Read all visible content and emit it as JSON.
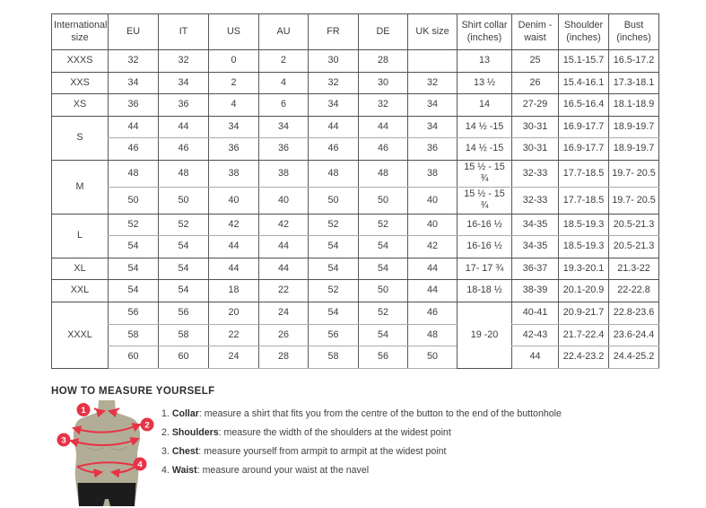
{
  "table": {
    "headers": [
      "International size",
      "EU",
      "IT",
      "US",
      "AU",
      "FR",
      "DE",
      "UK size",
      "Shirt collar (inches)",
      "Denim - waist",
      "Shoulder (inches)",
      "Bust (inches)"
    ],
    "rows": [
      {
        "group_end": true,
        "cells": [
          {
            "v": "XXXS"
          },
          {
            "v": "32"
          },
          {
            "v": "32"
          },
          {
            "v": "0"
          },
          {
            "v": "2"
          },
          {
            "v": "30"
          },
          {
            "v": "28"
          },
          {
            "v": ""
          },
          {
            "v": "13"
          },
          {
            "v": "25"
          },
          {
            "v": "15.1-15.7"
          },
          {
            "v": "16.5-17.2"
          }
        ]
      },
      {
        "group_end": true,
        "cells": [
          {
            "v": "XXS"
          },
          {
            "v": "34"
          },
          {
            "v": "34"
          },
          {
            "v": "2"
          },
          {
            "v": "4"
          },
          {
            "v": "32"
          },
          {
            "v": "30"
          },
          {
            "v": "32"
          },
          {
            "v": "13 ½"
          },
          {
            "v": "26"
          },
          {
            "v": "15.4-16.1"
          },
          {
            "v": "17.3-18.1"
          }
        ]
      },
      {
        "group_end": true,
        "cells": [
          {
            "v": "XS"
          },
          {
            "v": "36"
          },
          {
            "v": "36"
          },
          {
            "v": "4"
          },
          {
            "v": "6"
          },
          {
            "v": "34"
          },
          {
            "v": "32"
          },
          {
            "v": "34"
          },
          {
            "v": "14"
          },
          {
            "v": "27-29"
          },
          {
            "v": "16.5-16.4"
          },
          {
            "v": "18.1-18.9"
          }
        ]
      },
      {
        "group_end": false,
        "cells": [
          {
            "v": "S",
            "rs": 2
          },
          {
            "v": "44"
          },
          {
            "v": "44"
          },
          {
            "v": "34"
          },
          {
            "v": "34"
          },
          {
            "v": "44"
          },
          {
            "v": "44"
          },
          {
            "v": "34"
          },
          {
            "v": "14 ½ -15"
          },
          {
            "v": "30-31"
          },
          {
            "v": "16.9-17.7"
          },
          {
            "v": "18.9-19.7"
          }
        ]
      },
      {
        "group_end": true,
        "cells": [
          {
            "v": "46"
          },
          {
            "v": "46"
          },
          {
            "v": "36"
          },
          {
            "v": "36"
          },
          {
            "v": "46"
          },
          {
            "v": "46"
          },
          {
            "v": "36"
          },
          {
            "v": "14 ½ -15"
          },
          {
            "v": "30-31"
          },
          {
            "v": "16.9-17.7"
          },
          {
            "v": "18.9-19.7"
          }
        ]
      },
      {
        "group_end": false,
        "cells": [
          {
            "v": "M",
            "rs": 2
          },
          {
            "v": "48"
          },
          {
            "v": "48"
          },
          {
            "v": "38"
          },
          {
            "v": "38"
          },
          {
            "v": "48"
          },
          {
            "v": "48"
          },
          {
            "v": "38"
          },
          {
            "v": "15 ½ - 15 ¾"
          },
          {
            "v": "32-33"
          },
          {
            "v": "17.7-18.5"
          },
          {
            "v": "19.7- 20.5"
          }
        ]
      },
      {
        "group_end": true,
        "cells": [
          {
            "v": "50"
          },
          {
            "v": "50"
          },
          {
            "v": "40"
          },
          {
            "v": "40"
          },
          {
            "v": "50"
          },
          {
            "v": "50"
          },
          {
            "v": "40"
          },
          {
            "v": "15 ½ - 15 ¾"
          },
          {
            "v": "32-33"
          },
          {
            "v": "17.7-18.5"
          },
          {
            "v": "19.7- 20.5"
          }
        ]
      },
      {
        "group_end": false,
        "cells": [
          {
            "v": "L",
            "rs": 2
          },
          {
            "v": "52"
          },
          {
            "v": "52"
          },
          {
            "v": "42"
          },
          {
            "v": "42"
          },
          {
            "v": "52"
          },
          {
            "v": "52"
          },
          {
            "v": "40"
          },
          {
            "v": "16-16 ½"
          },
          {
            "v": "34-35"
          },
          {
            "v": "18.5-19.3"
          },
          {
            "v": "20.5-21.3"
          }
        ]
      },
      {
        "group_end": true,
        "cells": [
          {
            "v": "54"
          },
          {
            "v": "54"
          },
          {
            "v": "44"
          },
          {
            "v": "44"
          },
          {
            "v": "54"
          },
          {
            "v": "54"
          },
          {
            "v": "42"
          },
          {
            "v": "16-16 ½"
          },
          {
            "v": "34-35"
          },
          {
            "v": "18.5-19.3"
          },
          {
            "v": "20.5-21.3"
          }
        ]
      },
      {
        "group_end": true,
        "cells": [
          {
            "v": "XL"
          },
          {
            "v": "54"
          },
          {
            "v": "54"
          },
          {
            "v": "44"
          },
          {
            "v": "44"
          },
          {
            "v": "54"
          },
          {
            "v": "54"
          },
          {
            "v": "44"
          },
          {
            "v": "17- 17 ¾"
          },
          {
            "v": "36-37"
          },
          {
            "v": "19.3-20.1"
          },
          {
            "v": "21.3-22"
          }
        ]
      },
      {
        "group_end": true,
        "cells": [
          {
            "v": "XXL"
          },
          {
            "v": "54"
          },
          {
            "v": "54"
          },
          {
            "v": "18"
          },
          {
            "v": "22"
          },
          {
            "v": "52"
          },
          {
            "v": "50"
          },
          {
            "v": "44"
          },
          {
            "v": "18-18 ½"
          },
          {
            "v": "38-39"
          },
          {
            "v": "20.1-20.9"
          },
          {
            "v": "22-22.8"
          }
        ]
      },
      {
        "group_end": false,
        "cells": [
          {
            "v": "XXXL",
            "rs": 3
          },
          {
            "v": "56"
          },
          {
            "v": "56"
          },
          {
            "v": "20"
          },
          {
            "v": "24"
          },
          {
            "v": "54"
          },
          {
            "v": "52"
          },
          {
            "v": "46"
          },
          {
            "v": "19 -20",
            "rs": 3
          },
          {
            "v": "40-41"
          },
          {
            "v": "20.9-21.7"
          },
          {
            "v": "22.8-23.6"
          }
        ]
      },
      {
        "group_end": false,
        "cells": [
          {
            "v": "58"
          },
          {
            "v": "58"
          },
          {
            "v": "22"
          },
          {
            "v": "26"
          },
          {
            "v": "56"
          },
          {
            "v": "54"
          },
          {
            "v": "48"
          },
          {
            "v": "42-43"
          },
          {
            "v": "21.7-22.4"
          },
          {
            "v": "23.6-24.4"
          }
        ]
      },
      {
        "group_end": false,
        "cells": [
          {
            "v": "60"
          },
          {
            "v": "60"
          },
          {
            "v": "24"
          },
          {
            "v": "28"
          },
          {
            "v": "58"
          },
          {
            "v": "56"
          },
          {
            "v": "50"
          },
          {
            "v": "44"
          },
          {
            "v": "22.4-23.2"
          },
          {
            "v": "24.4-25.2"
          }
        ]
      }
    ]
  },
  "measure": {
    "title": "HOW TO MEASURE YOURSELF",
    "steps": [
      {
        "num": "1.",
        "label": "Collar",
        "text": ": measure a shirt that fits you from the centre of the button to the end of the buttonhole"
      },
      {
        "num": "2.",
        "label": "Shoulders",
        "text": ": measure the width of the shoulders at the widest point"
      },
      {
        "num": "3.",
        "label": "Chest",
        "text": ": measure yourself from armpit to armpit at the widest point"
      },
      {
        "num": "4.",
        "label": "Waist",
        "text": ": measure around your waist at the navel"
      }
    ]
  },
  "figure": {
    "badges": [
      "1",
      "2",
      "3",
      "4"
    ]
  },
  "colors": {
    "accent_red": "#e73345",
    "torso_olive": "#b2ad96",
    "shorts_black": "#1c1c1c",
    "border_dark": "#4f4f4f",
    "border_light": "#ababab",
    "text": "#3d3d3d"
  }
}
